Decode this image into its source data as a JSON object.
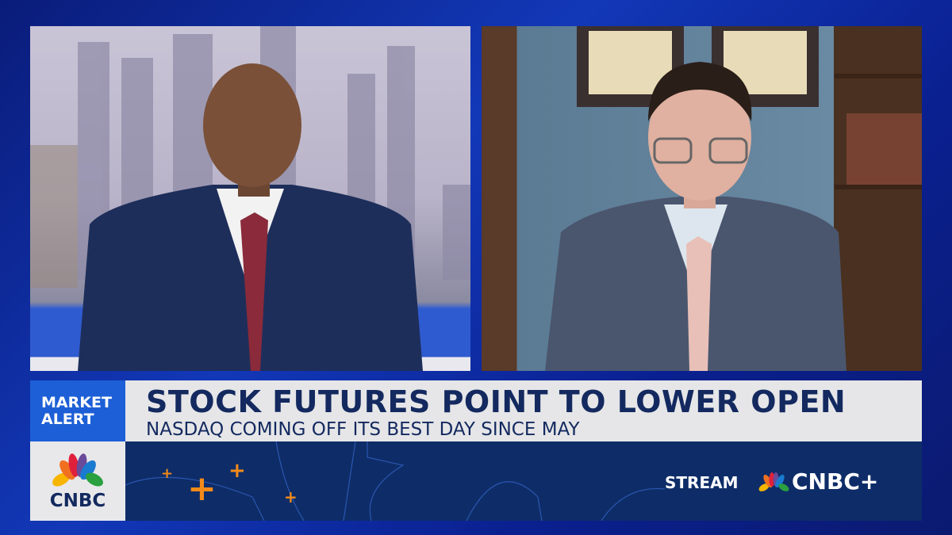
{
  "alert_label": {
    "line1": "MARKET",
    "line2": "ALERT"
  },
  "headline": "STOCK FUTURES POINT TO LOWER OPEN",
  "subheadline": "NASDAQ COMING OFF ITS BEST DAY SINCE MAY",
  "logo": {
    "text": "CNBC",
    "icon": "nbc-peacock-icon"
  },
  "promo": {
    "stream_label": "STREAM",
    "brand": "CNBC+"
  },
  "colors": {
    "alert_blue": "#1d5fd6",
    "headline_text": "#13295f",
    "strip_navy": "#0e2d68",
    "accent_orange": "#f28a1a"
  }
}
